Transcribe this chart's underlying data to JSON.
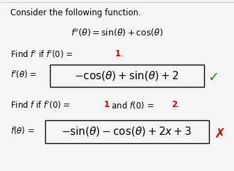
{
  "bg_color": "#f5f5f5",
  "title_text": "Consider the following function.",
  "check_color": "#2e7d32",
  "cross_color": "#cc0000",
  "box_color": "#000000",
  "text_color": "#000000",
  "highlight_color": "#cc0000"
}
